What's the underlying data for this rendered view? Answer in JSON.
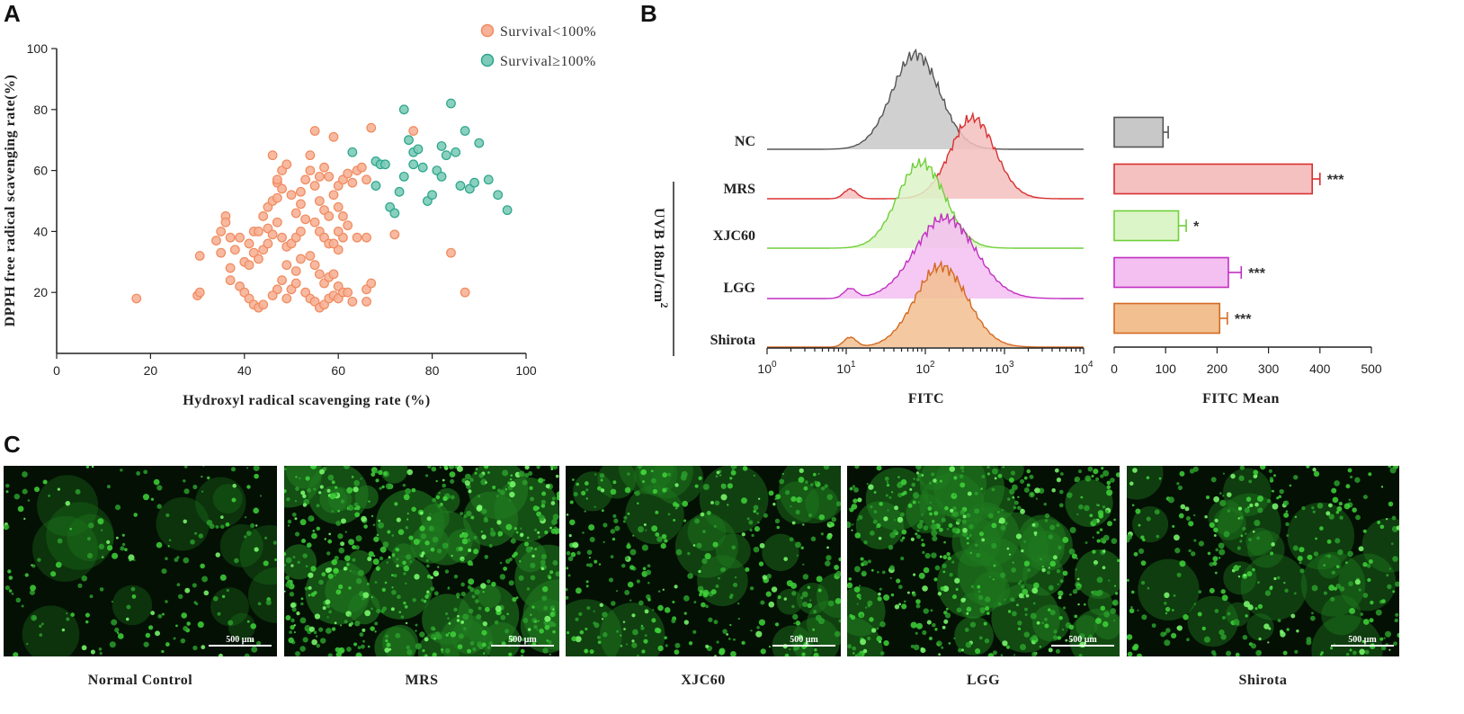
{
  "panels": {
    "a": "A",
    "b": "B",
    "c": "C"
  },
  "chart_data": [
    {
      "type": "scatter",
      "panel": "A",
      "xlabel": "Hydroxyl radical scavenging rate (%)",
      "ylabel": "DPPH free radical scavenging rate(%)",
      "xlim": [
        0,
        100
      ],
      "ylim": [
        0,
        100
      ],
      "xticks": [
        0,
        20,
        40,
        60,
        80,
        100
      ],
      "yticks": [
        20,
        40,
        60,
        80,
        100
      ],
      "legend_position": "top-right",
      "series": [
        {
          "name": "Survival<100%",
          "color": "#F08A5D",
          "points": [
            [
              17,
              18
            ],
            [
              30,
              19
            ],
            [
              30.5,
              20
            ],
            [
              30.5,
              32
            ],
            [
              34,
              37
            ],
            [
              35,
              40
            ],
            [
              36,
              45
            ],
            [
              36,
              43
            ],
            [
              37,
              38
            ],
            [
              35,
              33
            ],
            [
              37,
              28
            ],
            [
              38,
              34
            ],
            [
              37,
              24
            ],
            [
              39,
              22
            ],
            [
              40,
              20
            ],
            [
              39,
              38
            ],
            [
              41,
              36
            ],
            [
              42,
              40
            ],
            [
              43,
              40
            ],
            [
              40,
              30
            ],
            [
              41,
              29
            ],
            [
              42,
              33
            ],
            [
              43,
              31
            ],
            [
              41,
              18
            ],
            [
              42,
              16
            ],
            [
              43,
              15
            ],
            [
              44,
              16
            ],
            [
              44,
              34
            ],
            [
              45,
              36
            ],
            [
              45,
              41
            ],
            [
              46,
              39
            ],
            [
              47,
              43
            ],
            [
              44,
              45
            ],
            [
              45,
              48
            ],
            [
              46,
              50
            ],
            [
              47,
              51
            ],
            [
              47,
              56
            ],
            [
              47,
              57
            ],
            [
              48,
              54
            ],
            [
              48,
              60
            ],
            [
              49,
              62
            ],
            [
              46,
              65
            ],
            [
              48,
              38
            ],
            [
              49,
              35
            ],
            [
              49,
              29
            ],
            [
              48,
              24
            ],
            [
              47,
              21
            ],
            [
              46,
              19
            ],
            [
              49,
              18
            ],
            [
              50,
              21
            ],
            [
              51,
              23
            ],
            [
              51,
              27
            ],
            [
              52,
              31
            ],
            [
              50,
              36
            ],
            [
              51,
              38
            ],
            [
              52,
              40
            ],
            [
              53,
              44
            ],
            [
              51,
              46
            ],
            [
              52,
              49
            ],
            [
              50,
              52
            ],
            [
              52,
              53
            ],
            [
              53,
              57
            ],
            [
              54,
              60
            ],
            [
              54,
              65
            ],
            [
              55,
              73
            ],
            [
              56,
              58
            ],
            [
              57,
              61
            ],
            [
              55,
              55
            ],
            [
              56,
              50
            ],
            [
              57,
              47
            ],
            [
              58,
              45
            ],
            [
              55,
              43
            ],
            [
              56,
              40
            ],
            [
              57,
              38
            ],
            [
              58,
              36
            ],
            [
              54,
              32
            ],
            [
              55,
              29
            ],
            [
              56,
              26
            ],
            [
              57,
              23
            ],
            [
              53,
              20
            ],
            [
              54,
              18
            ],
            [
              55,
              17
            ],
            [
              56,
              15
            ],
            [
              57,
              16
            ],
            [
              58,
              18
            ],
            [
              59,
              19
            ],
            [
              60,
              22
            ],
            [
              58,
              25
            ],
            [
              59,
              26
            ],
            [
              60,
              34
            ],
            [
              59,
              36
            ],
            [
              61,
              38
            ],
            [
              60,
              40
            ],
            [
              62,
              42
            ],
            [
              61,
              45
            ],
            [
              60,
              48
            ],
            [
              59,
              52
            ],
            [
              60,
              55
            ],
            [
              61,
              57
            ],
            [
              62,
              59
            ],
            [
              58,
              58
            ],
            [
              59,
              71
            ],
            [
              63,
              56
            ],
            [
              64,
              60
            ],
            [
              65,
              61
            ],
            [
              66,
              57
            ],
            [
              67,
              74
            ],
            [
              64,
              38
            ],
            [
              66,
              38
            ],
            [
              63,
              17
            ],
            [
              66,
              17
            ],
            [
              66,
              21
            ],
            [
              67,
              23
            ],
            [
              72,
              39
            ],
            [
              76,
              73
            ],
            [
              84,
              33
            ],
            [
              87,
              20
            ],
            [
              60,
              18
            ],
            [
              61,
              20
            ],
            [
              62,
              20
            ]
          ]
        },
        {
          "name": "Survival≥100%",
          "color": "#2AA58A",
          "points": [
            [
              63,
              66
            ],
            [
              68,
              63
            ],
            [
              68,
              55
            ],
            [
              69,
              62
            ],
            [
              70,
              62
            ],
            [
              71,
              48
            ],
            [
              72,
              46
            ],
            [
              73,
              53
            ],
            [
              74,
              58
            ],
            [
              74,
              80
            ],
            [
              75,
              70
            ],
            [
              76,
              62
            ],
            [
              76,
              66
            ],
            [
              77,
              67
            ],
            [
              78,
              61
            ],
            [
              79,
              50
            ],
            [
              80,
              52
            ],
            [
              81,
              60
            ],
            [
              82,
              58
            ],
            [
              82,
              68
            ],
            [
              83,
              65
            ],
            [
              84,
              82
            ],
            [
              85,
              66
            ],
            [
              86,
              55
            ],
            [
              87,
              73
            ],
            [
              88,
              54
            ],
            [
              89,
              56
            ],
            [
              90,
              69
            ],
            [
              92,
              57
            ],
            [
              94,
              52
            ],
            [
              96,
              47
            ]
          ]
        }
      ]
    },
    {
      "type": "histogram_overlay",
      "panel": "B",
      "xlabel": "FITC",
      "xscale": "log",
      "xlim": [
        1,
        10000
      ],
      "xtick_bases": [
        "10",
        "10",
        "10",
        "10",
        "10"
      ],
      "xtick_exps": [
        "0",
        "1",
        "2",
        "3",
        "4"
      ],
      "categories": [
        "NC",
        "MRS",
        "XJC60",
        "LGG",
        "Shirota"
      ],
      "group_label": "UVB 18mJ/cm",
      "group_label_sup": "2",
      "colors": [
        "#555555",
        "#D83030",
        "#6FD03A",
        "#C22FC2",
        "#D46A22"
      ],
      "fills": [
        "#C8C8C8",
        "#F5C0C0",
        "#DCF5C8",
        "#F3C0F1",
        "#F2BF90"
      ],
      "peak_log10": [
        1.88,
        2.6,
        1.95,
        2.25,
        2.2
      ]
    },
    {
      "type": "bar",
      "orientation": "horizontal",
      "panel": "B",
      "xlabel": "FITC Mean",
      "xlim": [
        0,
        500
      ],
      "xticks": [
        0,
        100,
        200,
        300,
        400,
        500
      ],
      "categories": [
        "NC",
        "MRS",
        "XJC60",
        "LGG",
        "Shirota"
      ],
      "values": [
        95,
        385,
        125,
        222,
        205
      ],
      "errors": [
        10,
        15,
        15,
        25,
        15
      ],
      "significance": [
        "",
        "***",
        "*",
        "***",
        "***"
      ],
      "colors": [
        "#555555",
        "#D83030",
        "#6FD03A",
        "#C22FC2",
        "#D46A22"
      ],
      "fills": [
        "#C8C8C8",
        "#F5C0C0",
        "#DCF5C8",
        "#F3C0F1",
        "#F2BF90"
      ]
    }
  ],
  "panel_c": {
    "scale_bar": "500 μm",
    "images": [
      {
        "label": "Normal Control",
        "density": 0.25
      },
      {
        "label": "MRS",
        "density": 1.0
      },
      {
        "label": "XJC60",
        "density": 0.6
      },
      {
        "label": "LGG",
        "density": 0.85
      },
      {
        "label": "Shirota",
        "density": 0.5
      }
    ]
  }
}
